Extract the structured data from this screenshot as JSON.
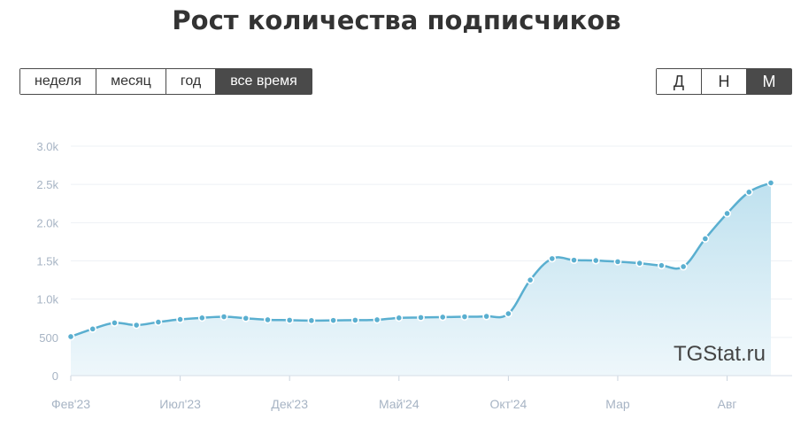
{
  "title": "Рост количества подписчиков",
  "range_tabs": [
    {
      "label": "неделя",
      "active": false
    },
    {
      "label": "месяц",
      "active": false
    },
    {
      "label": "год",
      "active": false
    },
    {
      "label": "все время",
      "active": true
    }
  ],
  "period_tabs": [
    {
      "label": "Д",
      "active": false
    },
    {
      "label": "Н",
      "active": false
    },
    {
      "label": "М",
      "active": true
    }
  ],
  "watermark": "TGStat.ru",
  "colors": {
    "line": "#5aafd0",
    "fill_top": "#bfe1ef",
    "fill_bottom": "#eef7fb",
    "grid": "#eef1f5",
    "active_tab": "#4a4a4a"
  },
  "chart_data": {
    "type": "area",
    "ylim": [
      0,
      3000
    ],
    "y_ticks": [
      0,
      500,
      1000,
      1500,
      2000,
      2500,
      3000
    ],
    "y_tick_labels": [
      "0",
      "500",
      "1.0k",
      "1.5k",
      "2.0k",
      "2.5k",
      "3.0k"
    ],
    "x_tick_labels": [
      "Фев'23",
      "Июл'23",
      "Дек'23",
      "Май'24",
      "Окт'24",
      "Мар",
      "Авг"
    ],
    "x_tick_index": [
      0,
      5,
      10,
      15,
      20,
      25,
      30
    ],
    "grid": true,
    "series": [
      {
        "values": [
          510,
          610,
          690,
          660,
          700,
          735,
          755,
          770,
          750,
          730,
          725,
          720,
          722,
          725,
          730,
          755,
          760,
          765,
          770,
          775,
          810,
          1250,
          1530,
          1510,
          1505,
          1490,
          1470,
          1440,
          1425,
          1790,
          2120,
          2400,
          2520
        ]
      }
    ]
  }
}
